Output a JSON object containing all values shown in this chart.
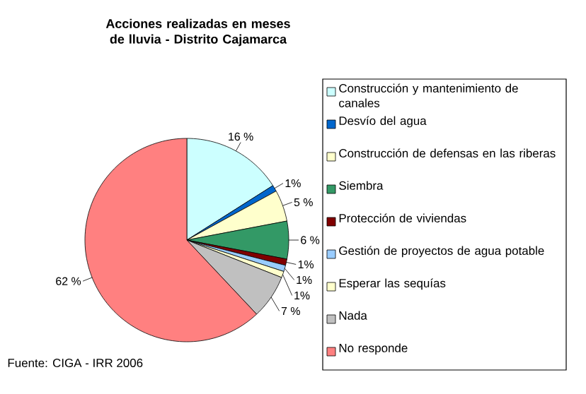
{
  "chart_data": {
    "type": "pie",
    "title": "Acciones realizadas en meses de lluvia - Distrito Cajamarca",
    "categories": [
      "Construcción y mantenimiento de canales",
      "Desvío del agua",
      "Construcción de defensas en las riberas",
      "Siembra",
      "Protección de viviendas",
      "Gestión de proyectos de agua potable",
      "Esperar las sequías",
      "Nada",
      "No responde"
    ],
    "values": [
      16,
      1,
      5,
      6,
      1,
      1,
      1,
      7,
      62
    ],
    "colors": [
      "#ccffff",
      "#0066cc",
      "#ffffcc",
      "#339966",
      "#800000",
      "#99ccff",
      "#ffffcc",
      "#c0c0c0",
      "#ff8080"
    ],
    "value_labels": [
      "16 %",
      "1%",
      "5 %",
      "6 %",
      "1%",
      "1%",
      "1%",
      "7 %",
      "62 %"
    ],
    "legend": "right",
    "annotations": [
      "Fuente: CIGA - IRR 2006"
    ]
  }
}
